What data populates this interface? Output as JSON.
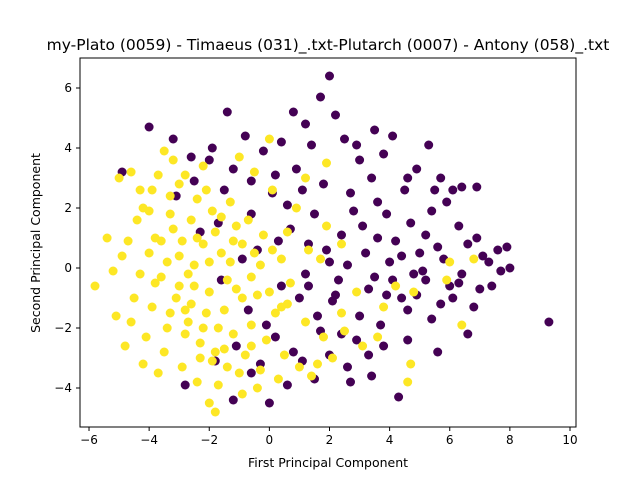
{
  "chart_data": {
    "type": "scatter",
    "title": "my-Plato (0059) - Timaeus (031)_.txt-Plutarch (0007) - Antony (058)_.txt",
    "xlabel": "First Principal Component",
    "ylabel": "Second Principal Component",
    "xlim": [
      -6.3,
      10.2
    ],
    "ylim": [
      -5.3,
      7.0
    ],
    "xticks": [
      -6,
      -4,
      -2,
      0,
      2,
      4,
      6,
      8,
      10
    ],
    "yticks": [
      -4,
      -2,
      0,
      2,
      4,
      6
    ],
    "grid": false,
    "legend": "none",
    "series": [
      {
        "color": "#440154",
        "points": [
          [
            -0.4,
            0.6
          ],
          [
            0.6,
            2.1
          ],
          [
            1.3,
            0.8
          ],
          [
            2.2,
            -0.9
          ],
          [
            3.1,
            1.4
          ],
          [
            4.0,
            0.2
          ],
          [
            5.2,
            1.1
          ],
          [
            6.3,
            -0.5
          ],
          [
            7.1,
            0.4
          ],
          [
            8.0,
            0.0
          ],
          [
            2.0,
            6.4
          ],
          [
            1.7,
            5.7
          ],
          [
            2.2,
            5.1
          ],
          [
            0.8,
            5.2
          ],
          [
            -1.4,
            5.2
          ],
          [
            -4.0,
            4.7
          ],
          [
            -4.9,
            3.2
          ],
          [
            1.2,
            4.8
          ],
          [
            3.5,
            4.6
          ],
          [
            2.9,
            4.1
          ],
          [
            4.1,
            4.4
          ],
          [
            5.3,
            4.1
          ],
          [
            6.4,
            2.7
          ],
          [
            6.9,
            2.7
          ],
          [
            7.9,
            0.7
          ],
          [
            7.4,
            -0.6
          ],
          [
            6.8,
            -1.3
          ],
          [
            6.6,
            -2.2
          ],
          [
            5.6,
            -2.8
          ],
          [
            4.3,
            -4.3
          ],
          [
            3.4,
            -3.6
          ],
          [
            2.7,
            -3.8
          ],
          [
            1.5,
            -3.7
          ],
          [
            0.0,
            -4.5
          ],
          [
            -1.2,
            -4.4
          ],
          [
            -2.8,
            -3.9
          ],
          [
            9.3,
            -1.8
          ],
          [
            5.2,
            -0.4
          ],
          [
            4.6,
            -1.4
          ],
          [
            3.8,
            -2.6
          ],
          [
            2.4,
            -2.2
          ],
          [
            1.6,
            -1.6
          ],
          [
            0.4,
            -0.6
          ],
          [
            -0.9,
            0.3
          ],
          [
            -1.7,
            1.5
          ],
          [
            -2.5,
            2.9
          ],
          [
            -3.1,
            2.4
          ],
          [
            -2.0,
            3.6
          ],
          [
            -0.2,
            3.9
          ],
          [
            0.9,
            3.3
          ],
          [
            1.8,
            2.8
          ],
          [
            2.7,
            2.5
          ],
          [
            3.4,
            3.0
          ],
          [
            4.5,
            2.6
          ],
          [
            5.9,
            2.2
          ],
          [
            6.3,
            1.4
          ],
          [
            5.6,
            0.7
          ],
          [
            4.8,
            -0.2
          ],
          [
            3.9,
            -0.9
          ],
          [
            3.0,
            -1.6
          ],
          [
            2.1,
            -1.1
          ],
          [
            1.2,
            -0.2
          ],
          [
            0.3,
            0.9
          ],
          [
            -0.6,
            1.8
          ],
          [
            -1.5,
            2.6
          ],
          [
            -2.3,
            1.2
          ],
          [
            -1.6,
            -0.4
          ],
          [
            -0.7,
            -1.4
          ],
          [
            0.2,
            -2.3
          ],
          [
            1.1,
            -3.1
          ],
          [
            2.0,
            -2.9
          ],
          [
            2.9,
            -2.4
          ],
          [
            3.7,
            -1.9
          ],
          [
            4.4,
            -1.0
          ],
          [
            5.1,
            -0.1
          ],
          [
            5.8,
            0.3
          ],
          [
            6.6,
            0.8
          ],
          [
            7.3,
            0.2
          ],
          [
            7.7,
            -0.1
          ],
          [
            6.1,
            -1.0
          ],
          [
            0.1,
            2.5
          ],
          [
            0.7,
            1.3
          ],
          [
            1.5,
            1.8
          ],
          [
            2.4,
            1.1
          ],
          [
            3.2,
            0.5
          ],
          [
            3.9,
            1.8
          ],
          [
            4.7,
            1.5
          ],
          [
            5.4,
            1.9
          ],
          [
            2.6,
            0.1
          ],
          [
            1.9,
            0.6
          ],
          [
            1.0,
            -1.0
          ],
          [
            2.3,
            -0.4
          ],
          [
            3.5,
            -0.3
          ],
          [
            4.2,
            0.9
          ],
          [
            5.0,
            0.5
          ],
          [
            -0.1,
            -1.9
          ],
          [
            0.8,
            -2.8
          ],
          [
            1.7,
            -2.1
          ],
          [
            -1.1,
            -2.6
          ],
          [
            -0.3,
            -3.2
          ],
          [
            3.0,
            3.6
          ],
          [
            3.8,
            3.8
          ],
          [
            4.9,
            3.3
          ],
          [
            5.7,
            3.0
          ],
          [
            2.5,
            4.3
          ],
          [
            1.4,
            4.1
          ],
          [
            0.4,
            4.2
          ],
          [
            -0.8,
            4.4
          ],
          [
            -1.9,
            4.0
          ],
          [
            -3.2,
            4.3
          ],
          [
            6.9,
            1.0
          ],
          [
            7.6,
            0.6
          ],
          [
            6.0,
            -0.6
          ],
          [
            5.4,
            -1.7
          ],
          [
            4.6,
            -2.4
          ],
          [
            3.3,
            -2.9
          ],
          [
            2.6,
            -3.3
          ],
          [
            0.6,
            -3.9
          ],
          [
            -0.6,
            -3.5
          ],
          [
            -1.8,
            -3.1
          ],
          [
            4.6,
            3.0
          ],
          [
            5.5,
            2.6
          ],
          [
            6.1,
            2.6
          ],
          [
            3.6,
            2.2
          ],
          [
            2.8,
            1.9
          ],
          [
            1.1,
            2.6
          ],
          [
            0.2,
            3.1
          ],
          [
            -0.6,
            2.9
          ],
          [
            -1.2,
            3.3
          ],
          [
            -2.6,
            3.7
          ],
          [
            1.3,
            -0.6
          ],
          [
            2.0,
            0.2
          ],
          [
            3.3,
            -0.7
          ],
          [
            4.1,
            -0.4
          ],
          [
            4.9,
            -0.9
          ],
          [
            5.7,
            -1.2
          ],
          [
            6.4,
            -0.2
          ],
          [
            7.0,
            -0.7
          ],
          [
            3.6,
            1.0
          ],
          [
            4.4,
            0.4
          ]
        ]
      },
      {
        "color": "#fde725",
        "points": [
          [
            -5.8,
            -0.6
          ],
          [
            -5.4,
            1.0
          ],
          [
            -5.0,
            3.0
          ],
          [
            -4.6,
            3.2
          ],
          [
            -4.2,
            2.0
          ],
          [
            -3.8,
            1.0
          ],
          [
            -3.4,
            0.2
          ],
          [
            -3.0,
            -0.6
          ],
          [
            -2.6,
            -1.2
          ],
          [
            -2.2,
            -2.0
          ],
          [
            -1.8,
            -2.8
          ],
          [
            -1.4,
            -3.3
          ],
          [
            -2.0,
            -4.5
          ],
          [
            -1.8,
            -4.8
          ],
          [
            -0.9,
            -4.2
          ],
          [
            -3.7,
            -3.5
          ],
          [
            -4.2,
            -3.2
          ],
          [
            -4.8,
            -2.6
          ],
          [
            -5.1,
            -1.6
          ],
          [
            -4.5,
            -1.0
          ],
          [
            0.0,
            4.3
          ],
          [
            1.9,
            3.5
          ],
          [
            1.2,
            3.0
          ],
          [
            1.7,
            0.3
          ],
          [
            2.9,
            -0.8
          ],
          [
            2.5,
            -2.1
          ],
          [
            3.6,
            -2.3
          ],
          [
            4.2,
            -0.6
          ],
          [
            4.8,
            -0.8
          ],
          [
            5.9,
            -0.4
          ],
          [
            6.0,
            0.2
          ],
          [
            6.4,
            -1.9
          ],
          [
            6.8,
            0.3
          ],
          [
            4.7,
            -3.2
          ],
          [
            4.6,
            -3.8
          ],
          [
            2.1,
            -3.0
          ],
          [
            1.2,
            -1.8
          ],
          [
            0.6,
            -1.2
          ],
          [
            -0.6,
            -0.3
          ],
          [
            -0.9,
            0.8
          ],
          [
            -1.6,
            1.7
          ],
          [
            -2.4,
            2.3
          ],
          [
            -3.2,
            3.6
          ],
          [
            -3.5,
            3.9
          ],
          [
            -2.8,
            3.1
          ],
          [
            -2.1,
            2.6
          ],
          [
            -1.3,
            2.2
          ],
          [
            -0.7,
            1.6
          ],
          [
            -0.2,
            1.1
          ],
          [
            0.4,
            0.3
          ],
          [
            -4.0,
            0.5
          ],
          [
            -3.6,
            -0.3
          ],
          [
            -3.1,
            -1.0
          ],
          [
            -2.7,
            -1.8
          ],
          [
            -2.3,
            -2.5
          ],
          [
            -1.9,
            -3.1
          ],
          [
            -1.5,
            -1.4
          ],
          [
            -1.1,
            -0.7
          ],
          [
            -0.6,
            -1.9
          ],
          [
            -0.1,
            -2.4
          ],
          [
            0.5,
            -2.9
          ],
          [
            1.0,
            -3.3
          ],
          [
            1.4,
            -3.6
          ],
          [
            1.8,
            -2.3
          ],
          [
            2.4,
            -1.5
          ],
          [
            3.1,
            -2.6
          ],
          [
            3.8,
            -1.3
          ],
          [
            -4.4,
            1.6
          ],
          [
            -4.9,
            0.4
          ],
          [
            -5.2,
            -0.1
          ],
          [
            -3.9,
            2.6
          ],
          [
            -3.3,
            1.8
          ],
          [
            -2.9,
            0.9
          ],
          [
            -2.5,
            0.1
          ],
          [
            -2.0,
            -0.8
          ],
          [
            -1.6,
            0.5
          ],
          [
            -1.2,
            -2.2
          ],
          [
            -0.8,
            -2.9
          ],
          [
            -0.3,
            -3.4
          ],
          [
            0.2,
            -1.5
          ],
          [
            0.7,
            -0.5
          ],
          [
            1.3,
            0.6
          ],
          [
            1.9,
            1.4
          ],
          [
            2.4,
            0.8
          ],
          [
            0.9,
            2.0
          ],
          [
            0.1,
            2.6
          ],
          [
            -0.5,
            3.2
          ],
          [
            -1.0,
            3.7
          ],
          [
            -2.2,
            3.4
          ],
          [
            -3.0,
            2.8
          ],
          [
            -4.6,
            -1.8
          ],
          [
            -4.1,
            -2.3
          ],
          [
            -3.5,
            -2.8
          ],
          [
            -2.9,
            -3.3
          ],
          [
            -2.4,
            -3.8
          ],
          [
            -1.7,
            -3.9
          ],
          [
            -1.0,
            -3.5
          ],
          [
            -0.4,
            -4.0
          ],
          [
            0.3,
            -3.7
          ],
          [
            1.6,
            -3.2
          ],
          [
            -3.8,
            -0.5
          ],
          [
            -3.3,
            -1.5
          ],
          [
            -2.8,
            -2.2
          ],
          [
            -2.2,
            0.8
          ],
          [
            -1.8,
            1.2
          ],
          [
            -1.3,
            0.2
          ],
          [
            -0.9,
            -1.0
          ],
          [
            -0.5,
            0.5
          ],
          [
            0.0,
            -0.8
          ],
          [
            0.6,
            1.2
          ],
          [
            -3.0,
            0.4
          ],
          [
            -2.6,
            1.6
          ],
          [
            -2.1,
            -1.5
          ],
          [
            -1.7,
            -2.0
          ],
          [
            -3.4,
            -2.0
          ],
          [
            -3.9,
            -1.3
          ],
          [
            -4.3,
            -0.2
          ],
          [
            -4.7,
            0.9
          ],
          [
            -4.3,
            2.6
          ],
          [
            -3.7,
            3.1
          ],
          [
            -2.5,
            -0.6
          ],
          [
            -2.0,
            0.2
          ],
          [
            -1.4,
            -0.4
          ],
          [
            -3.2,
            1.3
          ],
          [
            -2.7,
            -0.2
          ],
          [
            -1.9,
            1.9
          ],
          [
            -1.1,
            1.4
          ],
          [
            -0.3,
            0.1
          ],
          [
            0.4,
            -1.3
          ],
          [
            -0.6,
            -2.6
          ],
          [
            -2.3,
            -3.0
          ],
          [
            -1.5,
            -2.7
          ],
          [
            -2.8,
            -1.4
          ],
          [
            -3.6,
            0.9
          ],
          [
            -4.0,
            1.9
          ],
          [
            -3.3,
            2.4
          ],
          [
            -2.4,
            1.0
          ],
          [
            -1.2,
            0.9
          ],
          [
            -0.4,
            -0.9
          ],
          [
            0.1,
            0.6
          ]
        ]
      }
    ]
  }
}
